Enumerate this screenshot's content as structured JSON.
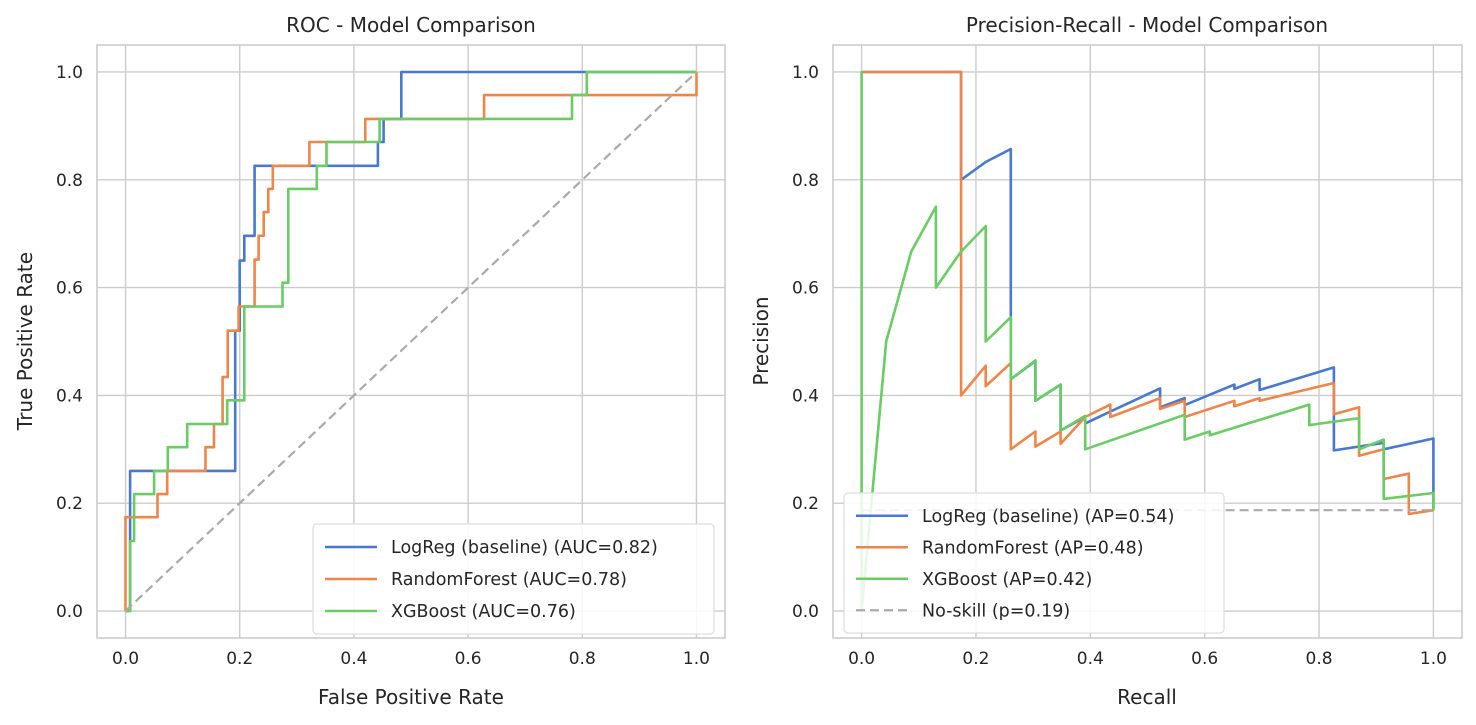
{
  "colors": {
    "logreg": "#4878d0",
    "rf": "#ee854a",
    "xgb": "#6acc64",
    "baseline": "#aaaaaa",
    "grid": "#cccccc",
    "frame": "#cccccc"
  },
  "chart_data": [
    {
      "type": "line",
      "title": "ROC - Model Comparison",
      "xlabel": "False Positive Rate",
      "ylabel": "True Positive Rate",
      "xlim": [
        -0.05,
        1.05
      ],
      "ylim": [
        -0.05,
        1.05
      ],
      "xticks": [
        "0.0",
        "0.2",
        "0.4",
        "0.6",
        "0.8",
        "1.0"
      ],
      "yticks": [
        "0.0",
        "0.2",
        "0.4",
        "0.6",
        "0.8",
        "1.0"
      ],
      "grid": true,
      "legend_position": "lower-right",
      "series": [
        {
          "name": "LogReg (baseline) (AUC=0.82)",
          "color": "#4878d0",
          "style": "solid",
          "x": [
            0,
            0.008,
            0.008,
            0.043,
            0.043,
            0.192,
            0.192,
            0.2,
            0.2,
            0.208,
            0.208,
            0.226,
            0.226,
            0.442,
            0.442,
            0.452,
            0.452,
            0.483,
            0.483,
            0.79,
            0.79,
            1.0
          ],
          "y": [
            0,
            0,
            0.26,
            0.26,
            0.26,
            0.26,
            0.52,
            0.52,
            0.65,
            0.65,
            0.696,
            0.696,
            0.826,
            0.826,
            0.87,
            0.87,
            0.913,
            0.913,
            1.0,
            1.0,
            1.0,
            1.0
          ]
        },
        {
          "name": "RandomForest (AUC=0.78)",
          "color": "#ee854a",
          "style": "solid",
          "x": [
            0,
            0.0,
            0.056,
            0.056,
            0.073,
            0.073,
            0.14,
            0.14,
            0.155,
            0.155,
            0.17,
            0.17,
            0.179,
            0.179,
            0.198,
            0.198,
            0.226,
            0.226,
            0.233,
            0.233,
            0.242,
            0.242,
            0.25,
            0.25,
            0.258,
            0.258,
            0.322,
            0.322,
            0.346,
            0.346,
            0.42,
            0.42,
            0.447,
            0.447,
            0.628,
            0.628,
            0.785,
            0.785,
            1.0,
            1.0
          ],
          "y": [
            0,
            0.174,
            0.174,
            0.217,
            0.217,
            0.26,
            0.26,
            0.304,
            0.304,
            0.347,
            0.347,
            0.434,
            0.434,
            0.52,
            0.52,
            0.565,
            0.565,
            0.652,
            0.652,
            0.696,
            0.696,
            0.74,
            0.74,
            0.783,
            0.783,
            0.826,
            0.826,
            0.87,
            0.87,
            0.87,
            0.87,
            0.913,
            0.913,
            0.913,
            0.913,
            0.957,
            0.957,
            0.957,
            0.957,
            1.0
          ]
        },
        {
          "name": "XGBoost (AUC=0.76)",
          "color": "#6acc64",
          "style": "solid",
          "x": [
            0,
            0.008,
            0.008,
            0.015,
            0.015,
            0.025,
            0.025,
            0.05,
            0.05,
            0.074,
            0.074,
            0.108,
            0.108,
            0.155,
            0.155,
            0.178,
            0.178,
            0.198,
            0.198,
            0.208,
            0.208,
            0.275,
            0.275,
            0.285,
            0.285,
            0.335,
            0.335,
            0.352,
            0.352,
            0.445,
            0.445,
            0.782,
            0.782,
            0.808,
            0.808,
            1.0
          ],
          "y": [
            0,
            0,
            0.13,
            0.13,
            0.217,
            0.217,
            0.217,
            0.217,
            0.26,
            0.26,
            0.304,
            0.304,
            0.347,
            0.347,
            0.347,
            0.347,
            0.391,
            0.391,
            0.391,
            0.391,
            0.565,
            0.565,
            0.609,
            0.609,
            0.783,
            0.783,
            0.826,
            0.826,
            0.87,
            0.87,
            0.913,
            0.913,
            0.957,
            0.957,
            1.0,
            1.0
          ]
        },
        {
          "name": "",
          "color": "#aaaaaa",
          "style": "dashed",
          "x": [
            0,
            1
          ],
          "y": [
            0,
            1
          ]
        }
      ],
      "legend": [
        {
          "label": "LogReg (baseline) (AUC=0.82)",
          "color": "#4878d0",
          "style": "solid"
        },
        {
          "label": "RandomForest (AUC=0.78)",
          "color": "#ee854a",
          "style": "solid"
        },
        {
          "label": "XGBoost (AUC=0.76)",
          "color": "#6acc64",
          "style": "solid"
        }
      ]
    },
    {
      "type": "line",
      "title": "Precision-Recall - Model Comparison",
      "xlabel": "Recall",
      "ylabel": "Precision",
      "xlim": [
        -0.05,
        1.05
      ],
      "ylim": [
        -0.05,
        1.05
      ],
      "xticks": [
        "0.0",
        "0.2",
        "0.4",
        "0.6",
        "0.8",
        "1.0"
      ],
      "yticks": [
        "0.0",
        "0.2",
        "0.4",
        "0.6",
        "0.8",
        "1.0"
      ],
      "grid": true,
      "legend_position": "lower-left",
      "series": [
        {
          "name": "LogReg (baseline) (AP=0.54)",
          "color": "#4878d0",
          "style": "solid",
          "x": [
            0,
            0.174,
            0.174,
            0.217,
            0.261,
            0.261,
            0.304,
            0.304,
            0.348,
            0.348,
            0.391,
            0.391,
            0.435,
            0.522,
            0.522,
            0.565,
            0.565,
            0.652,
            0.652,
            0.696,
            0.696,
            0.826,
            0.826,
            0.913,
            0.913,
            1.0,
            1.0
          ],
          "y": [
            1.0,
            1.0,
            0.8,
            0.833,
            0.857,
            0.43,
            0.464,
            0.39,
            0.42,
            0.335,
            0.36,
            0.348,
            0.37,
            0.413,
            0.378,
            0.395,
            0.382,
            0.42,
            0.412,
            0.43,
            0.41,
            0.452,
            0.298,
            0.312,
            0.3,
            0.32,
            0.19
          ]
        },
        {
          "name": "RandomForest (AP=0.48)",
          "color": "#ee854a",
          "style": "solid",
          "x": [
            0,
            0.174,
            0.174,
            0.217,
            0.217,
            0.261,
            0.261,
            0.304,
            0.304,
            0.348,
            0.348,
            0.391,
            0.435,
            0.435,
            0.522,
            0.522,
            0.565,
            0.565,
            0.652,
            0.652,
            0.696,
            0.696,
            0.826,
            0.826,
            0.87,
            0.87,
            0.913,
            0.913,
            0.957,
            0.957,
            1.0
          ],
          "y": [
            1.0,
            1.0,
            0.4,
            0.455,
            0.417,
            0.46,
            0.3,
            0.333,
            0.305,
            0.333,
            0.31,
            0.36,
            0.383,
            0.36,
            0.395,
            0.375,
            0.39,
            0.36,
            0.39,
            0.38,
            0.395,
            0.39,
            0.423,
            0.365,
            0.378,
            0.288,
            0.3,
            0.245,
            0.255,
            0.18,
            0.187
          ]
        },
        {
          "name": "XGBoost (AP=0.42)",
          "color": "#6acc64",
          "style": "solid",
          "x": [
            0.0,
            0.0,
            0.0,
            0.043,
            0.087,
            0.13,
            0.13,
            0.174,
            0.217,
            0.217,
            0.261,
            0.261,
            0.304,
            0.304,
            0.348,
            0.348,
            0.391,
            0.391,
            0.565,
            0.565,
            0.609,
            0.609,
            0.783,
            0.783,
            0.87,
            0.87,
            0.913,
            0.913,
            1.0,
            1.0
          ],
          "y": [
            0.0,
            1.0,
            0.0,
            0.5,
            0.667,
            0.75,
            0.6,
            0.667,
            0.714,
            0.5,
            0.545,
            0.43,
            0.465,
            0.39,
            0.42,
            0.335,
            0.362,
            0.3,
            0.364,
            0.318,
            0.333,
            0.326,
            0.383,
            0.345,
            0.358,
            0.3,
            0.318,
            0.208,
            0.219,
            0.186
          ]
        },
        {
          "name": "No-skill (p=0.19)",
          "color": "#aaaaaa",
          "style": "dashed",
          "x": [
            0,
            1
          ],
          "y": [
            0.187,
            0.187
          ]
        }
      ],
      "legend": [
        {
          "label": "LogReg (baseline) (AP=0.54)",
          "color": "#4878d0",
          "style": "solid"
        },
        {
          "label": "RandomForest (AP=0.48)",
          "color": "#ee854a",
          "style": "solid"
        },
        {
          "label": "XGBoost (AP=0.42)",
          "color": "#6acc64",
          "style": "solid"
        },
        {
          "label": "No-skill (p=0.19)",
          "color": "#aaaaaa",
          "style": "dashed"
        }
      ]
    }
  ]
}
